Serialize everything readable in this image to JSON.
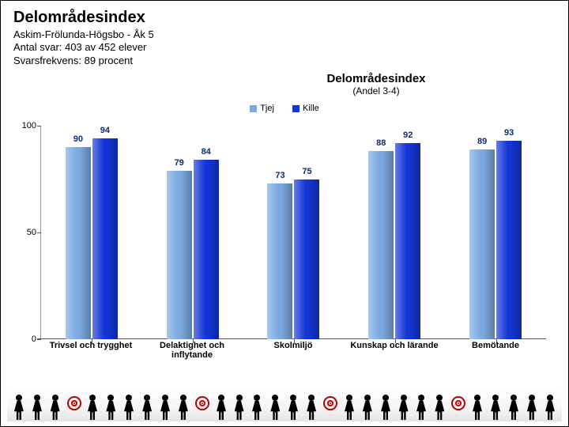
{
  "header": {
    "title": "Delområdesindex",
    "line1": "Askim-Frölunda-Högsbo - Åk 5",
    "line2": "Antal svar: 403 av 452 elever",
    "line3": "Svarsfrekvens: 89 procent"
  },
  "chart": {
    "title": "Delområdesindex",
    "subtitle": "(Andel 3-4)",
    "type": "grouped-bar",
    "ylim": [
      0,
      100
    ],
    "yticks": [
      0,
      50,
      100
    ],
    "series": [
      {
        "name": "Tjej",
        "color": "#7ba9e0"
      },
      {
        "name": "Kille",
        "color": "#1436d6"
      }
    ],
    "categories": [
      {
        "label": "Trivsel och trygghet",
        "values": [
          90,
          94
        ]
      },
      {
        "label": "Delaktighet och inflytande",
        "values": [
          79,
          84
        ]
      },
      {
        "label": "Skolmiljö",
        "values": [
          73,
          75
        ]
      },
      {
        "label": "Kunskap och lärande",
        "values": [
          88,
          92
        ]
      },
      {
        "label": "Bemötande",
        "values": [
          89,
          93
        ]
      }
    ],
    "label_color": "#0b2a7a",
    "background_color": "#ffffff",
    "axis_font_size": 11
  },
  "footer": {
    "silhouette_count": 26
  }
}
